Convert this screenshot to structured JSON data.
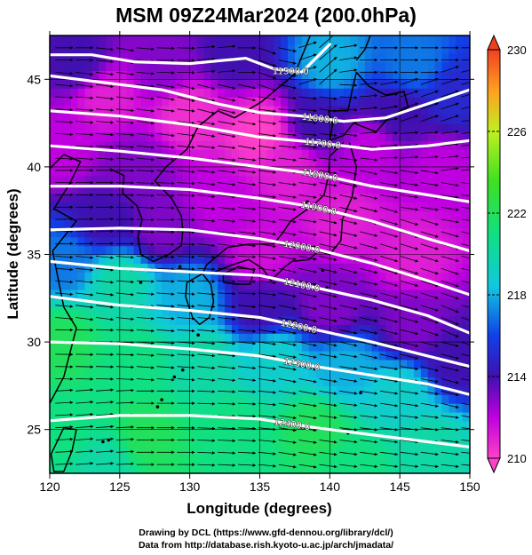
{
  "title": "MSM 09Z24Mar2024 (200.0hPa)",
  "x_axis": {
    "label": "Longitude (degrees)",
    "ticks": [
      "120",
      "125",
      "130",
      "135",
      "140",
      "145",
      "150"
    ]
  },
  "y_axis": {
    "label": "Latitude  (degrees)",
    "ticks": [
      "25",
      "30",
      "35",
      "40",
      "45"
    ]
  },
  "colorbar": {
    "ticks": [
      "210",
      "214",
      "218",
      "222",
      "226",
      "230"
    ],
    "min": 210,
    "max": 230,
    "colors": [
      "#ff40c8",
      "#c000e0",
      "#4010b0",
      "#1040e8",
      "#10c8e0",
      "#10e080",
      "#40e020",
      "#c0f020",
      "#ffa020",
      "#f04020"
    ]
  },
  "contours": [
    {
      "label": "11500.0"
    },
    {
      "label": "11600.0"
    },
    {
      "label": "11700.0"
    },
    {
      "label": "11800.0"
    },
    {
      "label": "11900.0"
    },
    {
      "label": "12000.0"
    },
    {
      "label": "12100.0"
    },
    {
      "label": "12200.0"
    },
    {
      "label": "12300.0"
    },
    {
      "label": "12400.0"
    }
  ],
  "credits": {
    "line1": "Drawing by DCL (https://www.gfd-dennou.org/library/dcl/)",
    "line2": "Data from http://database.rish.kyoto-u.ac.jp/arch/jmadata/"
  },
  "map": {
    "lon_range": [
      120,
      150
    ],
    "lat_range": [
      22.5,
      47.5
    ],
    "temperature_field": [
      {
        "lon": 122,
        "lat": 46,
        "t": 214
      },
      {
        "lon": 128,
        "lat": 46,
        "t": 213
      },
      {
        "lon": 133,
        "lat": 46.5,
        "t": 214
      },
      {
        "lon": 140,
        "lat": 46,
        "t": 218
      },
      {
        "lon": 146,
        "lat": 46,
        "t": 217
      },
      {
        "lon": 149,
        "lat": 44,
        "t": 215
      },
      {
        "lon": 145,
        "lat": 43,
        "t": 214
      },
      {
        "lon": 139,
        "lat": 42.5,
        "t": 214
      },
      {
        "lon": 143,
        "lat": 41,
        "t": 212
      },
      {
        "lon": 148,
        "lat": 40,
        "t": 212
      },
      {
        "lon": 124,
        "lat": 44,
        "t": 211
      },
      {
        "lon": 130,
        "lat": 43,
        "t": 210.5
      },
      {
        "lon": 135,
        "lat": 42,
        "t": 210
      },
      {
        "lon": 137,
        "lat": 40,
        "t": 211
      },
      {
        "lon": 121,
        "lat": 41,
        "t": 212
      },
      {
        "lon": 126,
        "lat": 40,
        "t": 213
      },
      {
        "lon": 132,
        "lat": 38,
        "t": 212
      },
      {
        "lon": 141,
        "lat": 37,
        "t": 211
      },
      {
        "lon": 146,
        "lat": 35,
        "t": 211
      },
      {
        "lon": 124,
        "lat": 37,
        "t": 214
      },
      {
        "lon": 128,
        "lat": 36.5,
        "t": 213
      },
      {
        "lon": 135,
        "lat": 35,
        "t": 211.5
      },
      {
        "lon": 121,
        "lat": 34.5,
        "t": 217
      },
      {
        "lon": 125,
        "lat": 33.5,
        "t": 220
      },
      {
        "lon": 130,
        "lat": 32.5,
        "t": 218
      },
      {
        "lon": 135,
        "lat": 32,
        "t": 214
      },
      {
        "lon": 140,
        "lat": 32,
        "t": 213
      },
      {
        "lon": 146,
        "lat": 31,
        "t": 213
      },
      {
        "lon": 149,
        "lat": 29,
        "t": 214
      },
      {
        "lon": 121,
        "lat": 30,
        "t": 222
      },
      {
        "lon": 126,
        "lat": 29,
        "t": 221
      },
      {
        "lon": 131,
        "lat": 29,
        "t": 220
      },
      {
        "lon": 136,
        "lat": 29,
        "t": 219
      },
      {
        "lon": 141,
        "lat": 28.5,
        "t": 218
      },
      {
        "lon": 145,
        "lat": 27,
        "t": 219
      },
      {
        "lon": 121,
        "lat": 25,
        "t": 221
      },
      {
        "lon": 127,
        "lat": 24.5,
        "t": 222
      },
      {
        "lon": 133,
        "lat": 25,
        "t": 221
      },
      {
        "lon": 139,
        "lat": 25,
        "t": 222
      },
      {
        "lon": 147,
        "lat": 24,
        "t": 220
      },
      {
        "lon": 124,
        "lat": 23,
        "t": 220
      },
      {
        "lon": 142,
        "lat": 23,
        "t": 221
      }
    ],
    "height_contours": [
      {
        "value": 11500,
        "points": [
          [
            120,
            46.4
          ],
          [
            123,
            46.4
          ],
          [
            126,
            46.0
          ],
          [
            130,
            45.9
          ],
          [
            134,
            46.2
          ],
          [
            136,
            45.6
          ],
          [
            138,
            45.4
          ],
          [
            140,
            47.0
          ]
        ]
      },
      {
        "value": 11600,
        "points": [
          [
            120,
            45.2
          ],
          [
            124,
            44.8
          ],
          [
            128,
            44.4
          ],
          [
            132,
            43.6
          ],
          [
            135,
            43.1
          ],
          [
            138,
            42.9
          ],
          [
            141,
            42.6
          ],
          [
            144,
            42.8
          ],
          [
            147,
            43.6
          ],
          [
            150,
            44.4
          ]
        ]
      },
      {
        "value": 11700,
        "points": [
          [
            120,
            43.2
          ],
          [
            125,
            42.9
          ],
          [
            130,
            42.4
          ],
          [
            135,
            41.7
          ],
          [
            139,
            41.4
          ],
          [
            143,
            41.0
          ],
          [
            147,
            41.2
          ],
          [
            150,
            41.5
          ]
        ]
      },
      {
        "value": 11800,
        "points": [
          [
            120,
            41.2
          ],
          [
            125,
            40.9
          ],
          [
            130,
            40.5
          ],
          [
            135,
            40.0
          ],
          [
            139,
            39.6
          ],
          [
            143,
            38.9
          ],
          [
            147,
            38.4
          ],
          [
            150,
            38.0
          ]
        ]
      },
      {
        "value": 11900,
        "points": [
          [
            120,
            38.9
          ],
          [
            125,
            38.9
          ],
          [
            130,
            38.7
          ],
          [
            135,
            38.2
          ],
          [
            139,
            37.7
          ],
          [
            143,
            36.9
          ],
          [
            147,
            35.9
          ],
          [
            150,
            35.2
          ]
        ]
      },
      {
        "value": 12000,
        "points": [
          [
            120,
            36.4
          ],
          [
            125,
            36.5
          ],
          [
            130,
            36.4
          ],
          [
            135,
            35.9
          ],
          [
            139,
            35.3
          ],
          [
            143,
            34.5
          ],
          [
            147,
            33.5
          ],
          [
            150,
            32.7
          ]
        ]
      },
      {
        "value": 12100,
        "points": [
          [
            120,
            34.6
          ],
          [
            125,
            34.2
          ],
          [
            130,
            34.0
          ],
          [
            135,
            33.8
          ],
          [
            139,
            33.1
          ],
          [
            143,
            32.4
          ],
          [
            147,
            31.5
          ],
          [
            150,
            30.5
          ]
        ]
      },
      {
        "value": 12200,
        "points": [
          [
            120,
            32.6
          ],
          [
            125,
            32.1
          ],
          [
            130,
            31.8
          ],
          [
            135,
            31.4
          ],
          [
            139,
            30.7
          ],
          [
            143,
            30.0
          ],
          [
            147,
            29.2
          ],
          [
            150,
            28.6
          ]
        ]
      },
      {
        "value": 12300,
        "points": [
          [
            120,
            30.0
          ],
          [
            125,
            29.9
          ],
          [
            130,
            29.6
          ],
          [
            135,
            29.2
          ],
          [
            139,
            28.6
          ],
          [
            143,
            28.1
          ],
          [
            147,
            27.6
          ],
          [
            150,
            27.0
          ]
        ]
      },
      {
        "value": 12400,
        "points": [
          [
            120,
            25.5
          ],
          [
            125,
            25.8
          ],
          [
            130,
            25.8
          ],
          [
            135,
            25.6
          ],
          [
            139,
            25.1
          ],
          [
            143,
            24.7
          ],
          [
            147,
            24.3
          ],
          [
            150,
            24.0
          ]
        ]
      }
    ],
    "coastlines": [
      {
        "region": "korea",
        "points": [
          [
            126.2,
            37.8
          ],
          [
            126.6,
            37.0
          ],
          [
            126.3,
            36.0
          ],
          [
            126.5,
            35.0
          ],
          [
            127.4,
            34.6
          ],
          [
            128.5,
            35.0
          ],
          [
            129.4,
            35.5
          ],
          [
            129.5,
            36.4
          ],
          [
            129.4,
            37.2
          ],
          [
            128.7,
            38.2
          ],
          [
            127.5,
            39.2
          ],
          [
            128.3,
            40.0
          ],
          [
            129.8,
            41.0
          ],
          [
            130.6,
            42.3
          ]
        ]
      },
      {
        "region": "china-coast",
        "points": [
          [
            121.0,
            40.7
          ],
          [
            122.2,
            40.3
          ],
          [
            121.4,
            39.0
          ],
          [
            120.3,
            37.6
          ],
          [
            121.9,
            36.9
          ],
          [
            120.2,
            35.2
          ],
          [
            121.0,
            32.0
          ],
          [
            121.9,
            30.8
          ],
          [
            121.0,
            28.0
          ],
          [
            120.0,
            26.5
          ]
        ]
      },
      {
        "region": "liaodong-west",
        "points": [
          [
            120.0,
            39.9
          ],
          [
            121.0,
            40.7
          ]
        ]
      },
      {
        "region": "korea-north-bay",
        "points": [
          [
            124.3,
            39.9
          ],
          [
            125.3,
            39.5
          ],
          [
            125.2,
            38.5
          ],
          [
            126.2,
            37.8
          ]
        ]
      },
      {
        "region": "russia-coast",
        "points": [
          [
            130.6,
            42.3
          ],
          [
            132.0,
            43.2
          ],
          [
            133.2,
            42.8
          ],
          [
            135.1,
            43.7
          ],
          [
            137.5,
            45.3
          ],
          [
            138.6,
            47.5
          ]
        ]
      },
      {
        "region": "sakhalin",
        "points": [
          [
            141.9,
            46.1
          ],
          [
            142.5,
            46.7
          ],
          [
            142.9,
            47.5
          ]
        ]
      },
      {
        "region": "hokkaido",
        "points": [
          [
            140.0,
            41.5
          ],
          [
            140.2,
            42.4
          ],
          [
            139.9,
            43.2
          ],
          [
            141.3,
            43.2
          ],
          [
            141.6,
            44.4
          ],
          [
            141.9,
            45.4
          ],
          [
            142.8,
            44.6
          ],
          [
            144.0,
            44.1
          ],
          [
            145.3,
            44.3
          ],
          [
            145.6,
            43.4
          ],
          [
            144.3,
            42.9
          ],
          [
            143.3,
            42.0
          ],
          [
            141.7,
            42.5
          ],
          [
            141.0,
            41.8
          ],
          [
            140.0,
            41.5
          ]
        ]
      },
      {
        "region": "honshu-sea-side",
        "points": [
          [
            141.0,
            41.4
          ],
          [
            140.0,
            40.6
          ],
          [
            139.9,
            39.5
          ],
          [
            139.6,
            38.4
          ],
          [
            138.8,
            37.8
          ],
          [
            137.2,
            36.9
          ],
          [
            136.7,
            36.3
          ],
          [
            136.0,
            35.6
          ],
          [
            134.3,
            35.6
          ],
          [
            132.7,
            35.4
          ],
          [
            131.2,
            34.4
          ],
          [
            130.9,
            33.9
          ]
        ]
      },
      {
        "region": "honshu-pacific-side",
        "points": [
          [
            141.4,
            41.4
          ],
          [
            141.9,
            40.0
          ],
          [
            141.6,
            38.3
          ],
          [
            140.9,
            37.0
          ],
          [
            140.8,
            35.8
          ],
          [
            140.0,
            35.0
          ],
          [
            139.2,
            35.2
          ],
          [
            138.5,
            34.7
          ],
          [
            137.3,
            34.6
          ],
          [
            136.8,
            34.3
          ],
          [
            135.8,
            33.5
          ],
          [
            135.2,
            34.2
          ],
          [
            134.2,
            34.7
          ],
          [
            133.0,
            34.4
          ],
          [
            131.8,
            34.0
          ],
          [
            130.9,
            33.9
          ]
        ]
      },
      {
        "region": "shikoku",
        "points": [
          [
            132.4,
            33.4
          ],
          [
            133.3,
            33.3
          ],
          [
            134.3,
            33.3
          ],
          [
            134.6,
            34.1
          ],
          [
            133.5,
            34.3
          ],
          [
            132.4,
            33.9
          ],
          [
            132.4,
            33.4
          ]
        ]
      },
      {
        "region": "kyushu",
        "points": [
          [
            130.9,
            33.9
          ],
          [
            129.8,
            33.4
          ],
          [
            129.7,
            32.6
          ],
          [
            130.2,
            31.4
          ],
          [
            130.7,
            31.0
          ],
          [
            131.4,
            31.4
          ],
          [
            131.7,
            32.3
          ],
          [
            131.5,
            33.3
          ],
          [
            130.9,
            33.9
          ]
        ]
      },
      {
        "region": "taiwan",
        "points": [
          [
            121.0,
            25.1
          ],
          [
            121.9,
            25.0
          ],
          [
            121.6,
            23.8
          ],
          [
            121.0,
            22.6
          ],
          [
            120.3,
            22.6
          ],
          [
            120.1,
            23.6
          ],
          [
            121.0,
            25.1
          ]
        ]
      }
    ],
    "islands": [
      {
        "lon": 126.5,
        "lat": 33.4
      },
      {
        "lon": 129.3,
        "lat": 34.3
      },
      {
        "lon": 128.3,
        "lat": 34.9
      },
      {
        "lon": 130.6,
        "lat": 30.4
      },
      {
        "lon": 129.5,
        "lat": 28.4
      },
      {
        "lon": 128.9,
        "lat": 28.0
      },
      {
        "lon": 128.0,
        "lat": 26.7
      },
      {
        "lon": 127.7,
        "lat": 26.3
      },
      {
        "lon": 124.2,
        "lat": 24.4
      },
      {
        "lon": 123.8,
        "lat": 24.3
      },
      {
        "lon": 139.5,
        "lat": 34.1
      },
      {
        "lon": 139.8,
        "lat": 33.1
      },
      {
        "lon": 142.2,
        "lat": 27.1
      },
      {
        "lon": 141.3,
        "lat": 24.8
      },
      {
        "lon": 138.4,
        "lat": 38.0
      }
    ]
  }
}
